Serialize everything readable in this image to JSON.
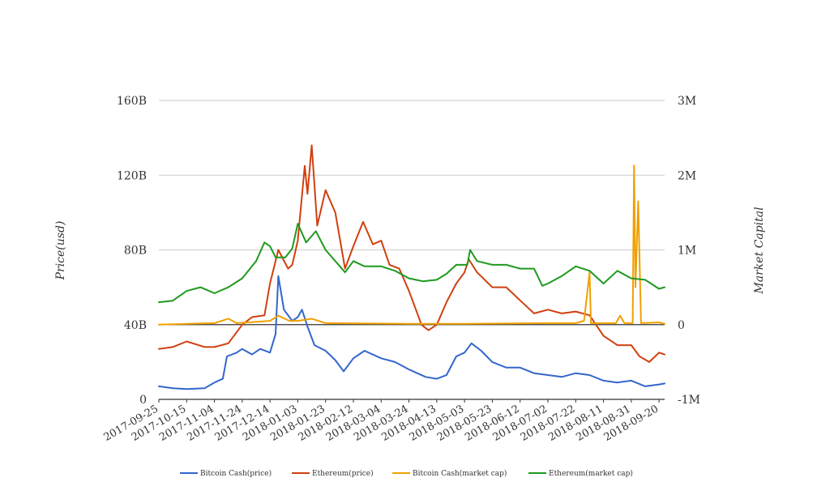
{
  "chart_data": {
    "type": "line",
    "title": "",
    "ylabel_left": "Price(usd)",
    "ylabel_right": "Market Capital",
    "y_left_ticks": [
      "0",
      "40B",
      "80B",
      "120B",
      "160B"
    ],
    "y_left_range": [
      0,
      160000000000
    ],
    "y_right_ticks": [
      "-1M",
      "0",
      "1M",
      "2M",
      "3M"
    ],
    "y_right_range": [
      -1000000,
      3000000
    ],
    "x_tick_labels": [
      "2017-09-25",
      "2017-10-15",
      "2017-11-04",
      "2017-11-24",
      "2017-12-14",
      "2018-01-03",
      "2018-01-23",
      "2018-02-12",
      "2018-03-04",
      "2018-03-24",
      "2018-04-13",
      "2018-05-03",
      "2018-05-23",
      "2018-06-12",
      "2018-07-02",
      "2018-07-22",
      "2018-08-11",
      "2018-08-31",
      "2018-09-20"
    ],
    "x_range": [
      "2017-09-25",
      "2018-09-24"
    ],
    "grid": true,
    "legend_position": "bottom",
    "series": [
      {
        "name": "Bitcoin Cash(price)",
        "axis": "left",
        "color": "#3366cc",
        "points": [
          [
            "2017-09-25",
            7
          ],
          [
            "2017-10-05",
            6
          ],
          [
            "2017-10-15",
            5.5
          ],
          [
            "2017-10-28",
            6
          ],
          [
            "2017-11-04",
            9
          ],
          [
            "2017-11-10",
            11
          ],
          [
            "2017-11-13",
            23
          ],
          [
            "2017-11-20",
            25
          ],
          [
            "2017-11-24",
            27
          ],
          [
            "2017-12-01",
            24
          ],
          [
            "2017-12-07",
            27
          ],
          [
            "2017-12-14",
            25
          ],
          [
            "2017-12-18",
            35
          ],
          [
            "2017-12-20",
            66
          ],
          [
            "2017-12-24",
            48
          ],
          [
            "2017-12-30",
            42
          ],
          [
            "2018-01-03",
            44
          ],
          [
            "2018-01-06",
            48
          ],
          [
            "2018-01-10",
            39
          ],
          [
            "2018-01-15",
            29
          ],
          [
            "2018-01-23",
            26
          ],
          [
            "2018-01-30",
            21
          ],
          [
            "2018-02-05",
            15
          ],
          [
            "2018-02-12",
            22
          ],
          [
            "2018-02-20",
            26
          ],
          [
            "2018-03-04",
            22
          ],
          [
            "2018-03-14",
            20
          ],
          [
            "2018-03-24",
            16
          ],
          [
            "2018-04-05",
            12
          ],
          [
            "2018-04-13",
            11
          ],
          [
            "2018-04-20",
            13
          ],
          [
            "2018-04-27",
            23
          ],
          [
            "2018-05-03",
            25
          ],
          [
            "2018-05-08",
            30
          ],
          [
            "2018-05-15",
            26
          ],
          [
            "2018-05-23",
            20
          ],
          [
            "2018-06-02",
            17
          ],
          [
            "2018-06-12",
            17
          ],
          [
            "2018-06-22",
            14
          ],
          [
            "2018-07-02",
            13
          ],
          [
            "2018-07-12",
            12
          ],
          [
            "2018-07-22",
            14
          ],
          [
            "2018-08-01",
            13
          ],
          [
            "2018-08-11",
            10
          ],
          [
            "2018-08-21",
            9
          ],
          [
            "2018-08-31",
            10
          ],
          [
            "2018-09-10",
            7
          ],
          [
            "2018-09-20",
            8
          ],
          [
            "2018-09-24",
            8.5
          ]
        ]
      },
      {
        "name": "Ethereum(price)",
        "axis": "left",
        "color": "#d04010",
        "points": [
          [
            "2017-09-25",
            27
          ],
          [
            "2017-10-05",
            28
          ],
          [
            "2017-10-15",
            31
          ],
          [
            "2017-10-28",
            28
          ],
          [
            "2017-11-04",
            28
          ],
          [
            "2017-11-14",
            30
          ],
          [
            "2017-11-24",
            40
          ],
          [
            "2017-12-01",
            44
          ],
          [
            "2017-12-10",
            45
          ],
          [
            "2017-12-14",
            62
          ],
          [
            "2017-12-20",
            80
          ],
          [
            "2017-12-27",
            70
          ],
          [
            "2017-12-30",
            72
          ],
          [
            "2018-01-03",
            85
          ],
          [
            "2018-01-08",
            125
          ],
          [
            "2018-01-10",
            110
          ],
          [
            "2018-01-13",
            136
          ],
          [
            "2018-01-17",
            93
          ],
          [
            "2018-01-23",
            112
          ],
          [
            "2018-01-30",
            100
          ],
          [
            "2018-02-06",
            70
          ],
          [
            "2018-02-12",
            82
          ],
          [
            "2018-02-19",
            95
          ],
          [
            "2018-02-26",
            83
          ],
          [
            "2018-03-04",
            85
          ],
          [
            "2018-03-10",
            72
          ],
          [
            "2018-03-17",
            70
          ],
          [
            "2018-03-24",
            58
          ],
          [
            "2018-04-02",
            40
          ],
          [
            "2018-04-07",
            37
          ],
          [
            "2018-04-13",
            40
          ],
          [
            "2018-04-20",
            52
          ],
          [
            "2018-04-27",
            62
          ],
          [
            "2018-05-03",
            68
          ],
          [
            "2018-05-06",
            75
          ],
          [
            "2018-05-12",
            68
          ],
          [
            "2018-05-23",
            60
          ],
          [
            "2018-06-02",
            60
          ],
          [
            "2018-06-12",
            53
          ],
          [
            "2018-06-22",
            46
          ],
          [
            "2018-07-02",
            48
          ],
          [
            "2018-07-12",
            46
          ],
          [
            "2018-07-22",
            47
          ],
          [
            "2018-08-01",
            45
          ],
          [
            "2018-08-11",
            34
          ],
          [
            "2018-08-21",
            29
          ],
          [
            "2018-08-31",
            29
          ],
          [
            "2018-09-06",
            23
          ],
          [
            "2018-09-13",
            20
          ],
          [
            "2018-09-20",
            25
          ],
          [
            "2018-09-24",
            24
          ]
        ]
      },
      {
        "name": "Bitcoin Cash(market cap)",
        "axis": "right",
        "color": "#f0a000",
        "points": [
          [
            "2017-09-25",
            0
          ],
          [
            "2017-11-04",
            0.02
          ],
          [
            "2017-11-14",
            0.08
          ],
          [
            "2017-11-20",
            0.02
          ],
          [
            "2017-12-14",
            0.05
          ],
          [
            "2017-12-20",
            0.12
          ],
          [
            "2017-12-28",
            0.05
          ],
          [
            "2018-01-03",
            0.05
          ],
          [
            "2018-01-13",
            0.08
          ],
          [
            "2018-01-23",
            0.02
          ],
          [
            "2018-03-24",
            0.01
          ],
          [
            "2018-05-03",
            0.01
          ],
          [
            "2018-07-02",
            0.02
          ],
          [
            "2018-07-22",
            0.02
          ],
          [
            "2018-07-28",
            0.05
          ],
          [
            "2018-08-01",
            0.7
          ],
          [
            "2018-08-02",
            0.02
          ],
          [
            "2018-08-20",
            0.02
          ],
          [
            "2018-08-23",
            0.12
          ],
          [
            "2018-08-26",
            0.02
          ],
          [
            "2018-09-01",
            0.02
          ],
          [
            "2018-09-02",
            2.13
          ],
          [
            "2018-09-03",
            0.5
          ],
          [
            "2018-09-05",
            1.65
          ],
          [
            "2018-09-07",
            0.02
          ],
          [
            "2018-09-20",
            0.03
          ],
          [
            "2018-09-24",
            0.01
          ]
        ]
      },
      {
        "name": "Ethereum(market cap)",
        "axis": "right",
        "color": "#1f9a1f",
        "points": [
          [
            "2017-09-25",
            0.3
          ],
          [
            "2017-10-05",
            0.32
          ],
          [
            "2017-10-15",
            0.45
          ],
          [
            "2017-10-25",
            0.5
          ],
          [
            "2017-11-04",
            0.42
          ],
          [
            "2017-11-14",
            0.5
          ],
          [
            "2017-11-24",
            0.62
          ],
          [
            "2017-12-04",
            0.85
          ],
          [
            "2017-12-10",
            1.1
          ],
          [
            "2017-12-14",
            1.05
          ],
          [
            "2017-12-18",
            0.9
          ],
          [
            "2017-12-25",
            0.9
          ],
          [
            "2017-12-30",
            1.02
          ],
          [
            "2018-01-03",
            1.35
          ],
          [
            "2018-01-09",
            1.1
          ],
          [
            "2018-01-16",
            1.25
          ],
          [
            "2018-01-23",
            1.0
          ],
          [
            "2018-01-30",
            0.85
          ],
          [
            "2018-02-06",
            0.7
          ],
          [
            "2018-02-12",
            0.85
          ],
          [
            "2018-02-20",
            0.78
          ],
          [
            "2018-03-04",
            0.78
          ],
          [
            "2018-03-14",
            0.72
          ],
          [
            "2018-03-24",
            0.62
          ],
          [
            "2018-04-03",
            0.58
          ],
          [
            "2018-04-13",
            0.6
          ],
          [
            "2018-04-20",
            0.68
          ],
          [
            "2018-04-27",
            0.8
          ],
          [
            "2018-05-05",
            0.8
          ],
          [
            "2018-05-07",
            1.0
          ],
          [
            "2018-05-12",
            0.85
          ],
          [
            "2018-05-23",
            0.8
          ],
          [
            "2018-06-02",
            0.8
          ],
          [
            "2018-06-12",
            0.75
          ],
          [
            "2018-06-22",
            0.75
          ],
          [
            "2018-06-28",
            0.52
          ],
          [
            "2018-07-02",
            0.55
          ],
          [
            "2018-07-12",
            0.65
          ],
          [
            "2018-07-22",
            0.78
          ],
          [
            "2018-08-01",
            0.72
          ],
          [
            "2018-08-11",
            0.55
          ],
          [
            "2018-08-21",
            0.72
          ],
          [
            "2018-08-31",
            0.62
          ],
          [
            "2018-09-10",
            0.6
          ],
          [
            "2018-09-20",
            0.48
          ],
          [
            "2018-09-24",
            0.5
          ]
        ]
      }
    ]
  }
}
